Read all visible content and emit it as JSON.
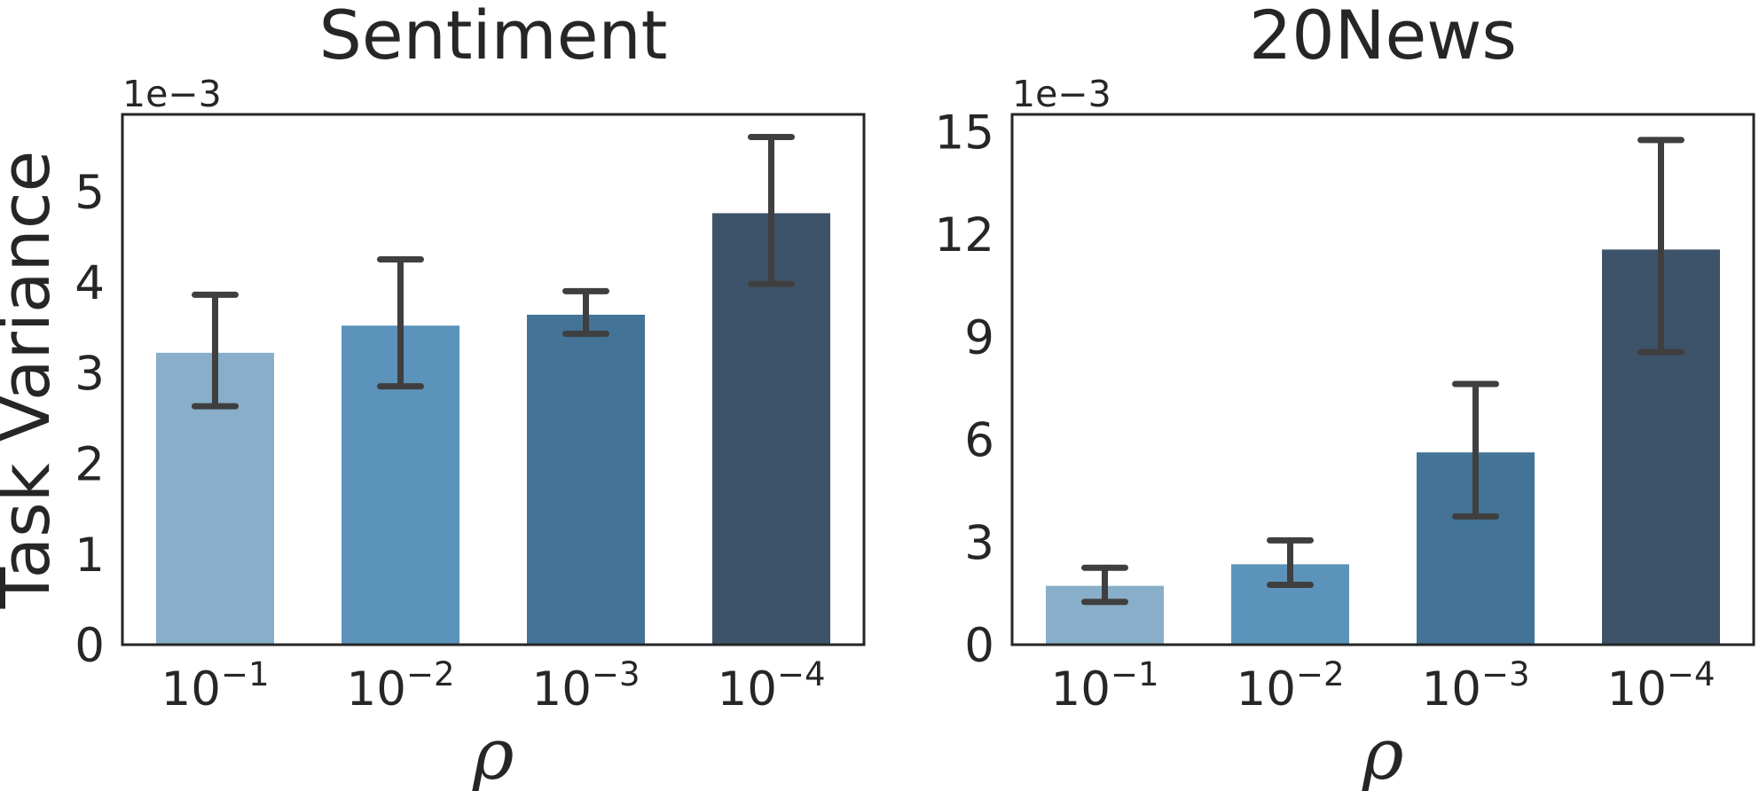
{
  "chart_data": [
    {
      "type": "bar",
      "title": "Sentiment",
      "ylabel": "Task Variance",
      "xlabel": "ρ",
      "y_offset_text": "1e−3",
      "ylim": [
        0,
        5.85
      ],
      "yticks": [
        "0",
        "1",
        "2",
        "3",
        "4",
        "5"
      ],
      "categories": [
        {
          "base": "10",
          "exp": "−1"
        },
        {
          "base": "10",
          "exp": "−2"
        },
        {
          "base": "10",
          "exp": "−3"
        },
        {
          "base": "10",
          "exp": "−4"
        }
      ],
      "values": [
        3.22,
        3.52,
        3.64,
        4.76
      ],
      "error_low": [
        2.63,
        2.85,
        3.43,
        3.98
      ],
      "error_high": [
        3.86,
        4.25,
        3.9,
        5.6
      ],
      "colors": [
        "#88aec9",
        "#5b93ba",
        "#437396",
        "#3d5369"
      ]
    },
    {
      "type": "bar",
      "title": "20News",
      "ylabel": "",
      "xlabel": "ρ",
      "y_offset_text": "1e−3",
      "ylim": [
        0,
        15.5
      ],
      "yticks": [
        "0",
        "3",
        "6",
        "9",
        "12",
        "15"
      ],
      "categories": [
        {
          "base": "10",
          "exp": "−1"
        },
        {
          "base": "10",
          "exp": "−2"
        },
        {
          "base": "10",
          "exp": "−3"
        },
        {
          "base": "10",
          "exp": "−4"
        }
      ],
      "values": [
        1.72,
        2.35,
        5.62,
        11.55
      ],
      "error_low": [
        1.25,
        1.75,
        3.75,
        8.55
      ],
      "error_high": [
        2.25,
        3.05,
        7.62,
        14.75
      ],
      "colors": [
        "#88aec9",
        "#5b93ba",
        "#437396",
        "#3d5369"
      ]
    }
  ]
}
